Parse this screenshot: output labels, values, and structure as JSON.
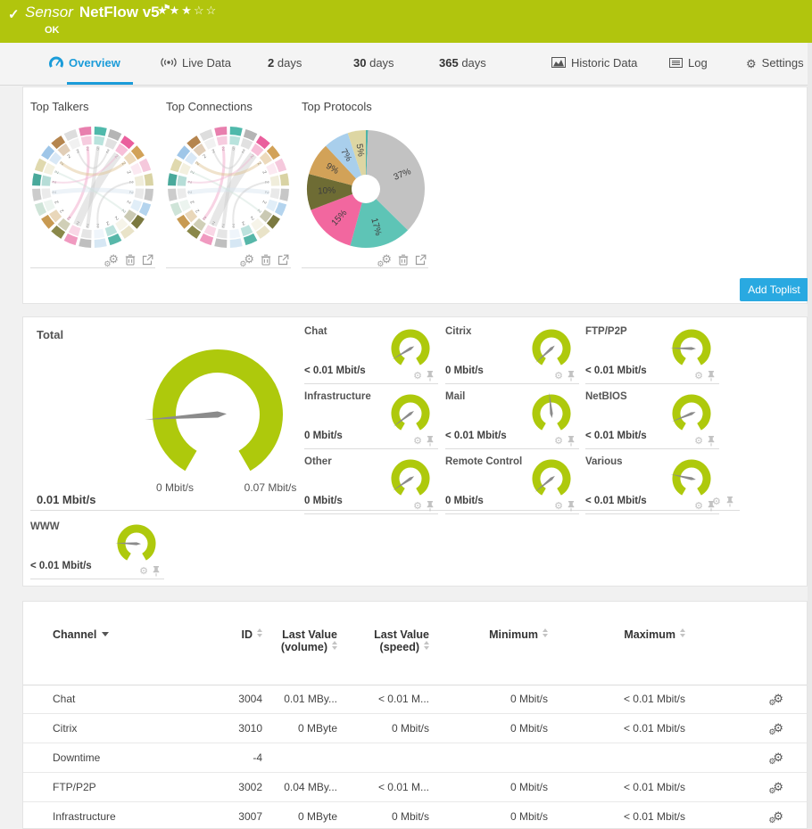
{
  "header": {
    "check": "✓",
    "kind": "Sensor",
    "name": "NetFlow v5",
    "flag": "⚑",
    "stars": "★★★☆☆",
    "status": "OK",
    "color": "#b1c50d"
  },
  "tabs": {
    "items": [
      {
        "label": "Overview",
        "active": true
      },
      {
        "label": "Live Data"
      },
      {
        "num": "2",
        "label": "days"
      },
      {
        "num": "30",
        "label": "days"
      },
      {
        "num": "365",
        "label": "days"
      },
      {
        "label": "Historic Data"
      },
      {
        "label": "Log"
      },
      {
        "label": "Settings"
      }
    ],
    "active_color": "#1b9cd9"
  },
  "toplists": {
    "talkers_title": "Top Talkers",
    "connections_title": "Top Connections",
    "protocols_title": "Top Protocols",
    "add_button": "Add Toplist",
    "chord_palette": [
      "#4fb9ab",
      "#b5b5b5",
      "#ea5f9d",
      "#d2a258",
      "#f5c8dc",
      "#d9d3a4",
      "#c7c7c7",
      "#b4d4ee",
      "#7b7940",
      "#e9e3c8",
      "#57b7a9",
      "#d6e7f4",
      "#bfbfbf",
      "#f09ac0",
      "#8a884a",
      "#c89a52",
      "#cfe4d8",
      "#cccccc",
      "#49a99b",
      "#e0d9ae",
      "#9fc6e8",
      "#b5854e",
      "#dddddd",
      "#e87fae"
    ],
    "chord_values": [
      "5",
      "2",
      "2",
      "2",
      "2",
      "2",
      "2",
      "2",
      "2",
      "2",
      "2",
      "2",
      "2",
      "2",
      "2",
      "2",
      "2",
      "2",
      "2",
      "2",
      "2",
      "2",
      "2",
      "2"
    ]
  },
  "chart_data": {
    "type": "pie",
    "title": "Top Protocols",
    "values": [
      37,
      17,
      15,
      10,
      9,
      7,
      5
    ],
    "labels": [
      "37%",
      "17%",
      "15%",
      "10%",
      "9%",
      "7%",
      "5%"
    ],
    "colors": [
      "#c2c2c2",
      "#5ec4b6",
      "#f2679f",
      "#6e6c34",
      "#d2a258",
      "#a9cfec",
      "#ddd6a3"
    ],
    "sliver_color": "#4db4a8",
    "legend_position": "none",
    "donut_hole": true
  },
  "gauges": {
    "color": "#aec90c",
    "needle_color": "#8b8b8b",
    "total": {
      "label": "Total",
      "value": "0.01 Mbit/s",
      "scale_min": "0 Mbit/s",
      "scale_max": "0.07 Mbit/s",
      "needle_deg": 176
    },
    "channels": [
      {
        "label": "Chat",
        "value": "< 0.01 Mbit/s",
        "needle_deg": 149
      },
      {
        "label": "Citrix",
        "value": "0 Mbit/s",
        "needle_deg": 138
      },
      {
        "label": "FTP/P2P",
        "value": "< 0.01 Mbit/s",
        "needle_deg": 181
      },
      {
        "label": "Infrastructure",
        "value": "0 Mbit/s",
        "needle_deg": 143
      },
      {
        "label": "Mail",
        "value": "< 0.01 Mbit/s",
        "needle_deg": 264
      },
      {
        "label": "NetBIOS",
        "value": "< 0.01 Mbit/s",
        "needle_deg": 158
      },
      {
        "label": "Other",
        "value": "0 Mbit/s",
        "needle_deg": 146
      },
      {
        "label": "Remote Control",
        "value": "0 Mbit/s",
        "needle_deg": 141
      },
      {
        "label": "Various",
        "value": "< 0.01 Mbit/s",
        "needle_deg": 192
      },
      {
        "label": "WWW",
        "value": "< 0.01 Mbit/s",
        "needle_deg": 182
      }
    ]
  },
  "table": {
    "columns": {
      "channel": "Channel",
      "id": "ID",
      "vol1": "Last Value",
      "vol2": "(volume)",
      "spd1": "Last Value",
      "spd2": "(speed)",
      "min": "Minimum",
      "max": "Maximum"
    },
    "rows": [
      {
        "channel": "Chat",
        "id": "3004",
        "vol": "0.01 MBy...",
        "speed": "< 0.01 M...",
        "min": "0 Mbit/s",
        "max": "< 0.01 Mbit/s"
      },
      {
        "channel": "Citrix",
        "id": "3010",
        "vol": "0 MByte",
        "speed": "0 Mbit/s",
        "min": "0 Mbit/s",
        "max": "< 0.01 Mbit/s"
      },
      {
        "channel": "Downtime",
        "id": "-4",
        "vol": "",
        "speed": "",
        "min": "",
        "max": ""
      },
      {
        "channel": "FTP/P2P",
        "id": "3002",
        "vol": "0.04 MBy...",
        "speed": "< 0.01 M...",
        "min": "0 Mbit/s",
        "max": "< 0.01 Mbit/s"
      },
      {
        "channel": "Infrastructure",
        "id": "3007",
        "vol": "0 MByte",
        "speed": "0 Mbit/s",
        "min": "0 Mbit/s",
        "max": "< 0.01 Mbit/s"
      }
    ]
  }
}
